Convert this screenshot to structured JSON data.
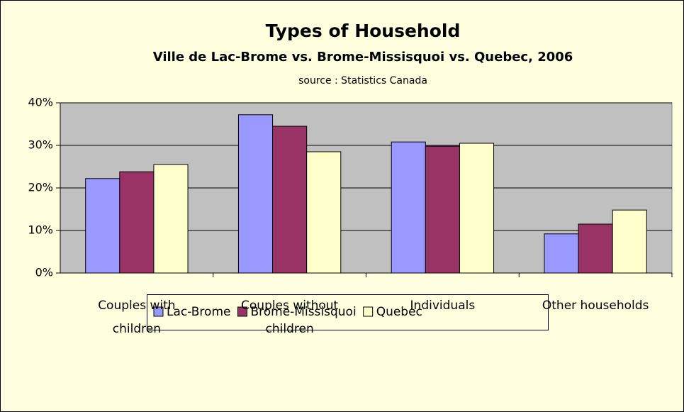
{
  "chart_data": {
    "type": "bar",
    "title": "Types of Household",
    "subtitle": "Ville de Lac-Brome vs. Brome-Missisquoi vs. Quebec, 2006",
    "source": "source : Statistics Canada",
    "categories": [
      "Couples with children",
      "Couples without children",
      "Individuals",
      "Other households"
    ],
    "series": [
      {
        "name": "Lac-Brome",
        "color": "#9999ff",
        "values": [
          22.2,
          37.2,
          30.8,
          9.2
        ]
      },
      {
        "name": "Brome-Missisquoi",
        "color": "#993366",
        "values": [
          23.8,
          34.5,
          29.8,
          11.5
        ]
      },
      {
        "name": "Quebec",
        "color": "#ffffcc",
        "values": [
          25.5,
          28.5,
          30.5,
          14.8
        ]
      }
    ],
    "ylim": [
      0,
      40
    ],
    "yticks": [
      {
        "value": 0,
        "label": "0%"
      },
      {
        "value": 10,
        "label": "10%"
      },
      {
        "value": 20,
        "label": "20%"
      },
      {
        "value": 30,
        "label": "30%"
      },
      {
        "value": 40,
        "label": "40%"
      }
    ],
    "grid": true,
    "legend": "bottom"
  }
}
